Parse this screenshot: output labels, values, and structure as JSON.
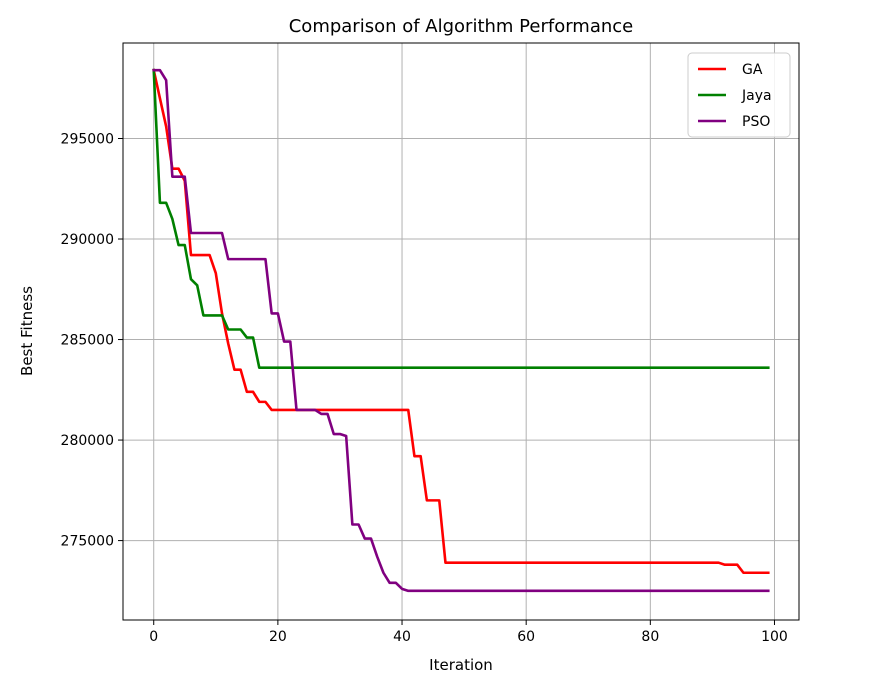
{
  "chart_data": {
    "type": "line",
    "title": "Comparison of Algorithm Performance",
    "xlabel": "Iteration",
    "ylabel": "Best Fitness",
    "xlim": [
      -4.95,
      103.95
    ],
    "ylim": [
      271050,
      299750
    ],
    "xticks": [
      0,
      20,
      40,
      60,
      80,
      100
    ],
    "yticks": [
      275000,
      280000,
      285000,
      290000,
      295000
    ],
    "grid": true,
    "legend_position": "top-right",
    "series": [
      {
        "name": "GA",
        "color": "#ff0000",
        "x": [
          0,
          1,
          2,
          3,
          4,
          5,
          6,
          7,
          8,
          9,
          10,
          11,
          12,
          13,
          14,
          15,
          16,
          17,
          18,
          19,
          20,
          21,
          22,
          23,
          24,
          25,
          26,
          27,
          28,
          29,
          30,
          31,
          32,
          33,
          34,
          35,
          36,
          37,
          38,
          39,
          40,
          41,
          42,
          43,
          44,
          45,
          46,
          47,
          48,
          49,
          50,
          51,
          52,
          53,
          54,
          55,
          56,
          57,
          58,
          59,
          60,
          61,
          62,
          63,
          64,
          65,
          66,
          67,
          68,
          69,
          70,
          71,
          72,
          73,
          74,
          75,
          76,
          77,
          78,
          79,
          80,
          81,
          82,
          83,
          84,
          85,
          86,
          87,
          88,
          89,
          90,
          91,
          92,
          93,
          94,
          95,
          96,
          97,
          98,
          99
        ],
        "y": [
          298400,
          297000,
          295600,
          293500,
          293500,
          292900,
          289200,
          289200,
          289200,
          289200,
          288300,
          286300,
          284800,
          283500,
          283500,
          282400,
          282400,
          281900,
          281900,
          281500,
          281500,
          281500,
          281500,
          281500,
          281500,
          281500,
          281500,
          281500,
          281500,
          281500,
          281500,
          281500,
          281500,
          281500,
          281500,
          281500,
          281500,
          281500,
          281500,
          281500,
          281500,
          281500,
          279200,
          279200,
          277000,
          277000,
          277000,
          273900,
          273900,
          273900,
          273900,
          273900,
          273900,
          273900,
          273900,
          273900,
          273900,
          273900,
          273900,
          273900,
          273900,
          273900,
          273900,
          273900,
          273900,
          273900,
          273900,
          273900,
          273900,
          273900,
          273900,
          273900,
          273900,
          273900,
          273900,
          273900,
          273900,
          273900,
          273900,
          273900,
          273900,
          273900,
          273900,
          273900,
          273900,
          273900,
          273900,
          273900,
          273900,
          273900,
          273900,
          273900,
          273800,
          273800,
          273800,
          273400,
          273400,
          273400,
          273400,
          273400
        ]
      },
      {
        "name": "Jaya",
        "color": "#008000",
        "x": [
          0,
          1,
          2,
          3,
          4,
          5,
          6,
          7,
          8,
          9,
          10,
          11,
          12,
          13,
          14,
          15,
          16,
          17,
          18,
          19,
          20,
          21,
          22,
          23,
          24,
          25,
          26,
          27,
          28,
          29,
          30,
          31,
          32,
          33,
          34,
          35,
          36,
          37,
          38,
          39,
          40,
          41,
          42,
          43,
          44,
          45,
          46,
          47,
          48,
          49,
          50,
          51,
          52,
          53,
          54,
          55,
          56,
          57,
          58,
          59,
          60,
          61,
          62,
          63,
          64,
          65,
          66,
          67,
          68,
          69,
          70,
          71,
          72,
          73,
          74,
          75,
          76,
          77,
          78,
          79,
          80,
          81,
          82,
          83,
          84,
          85,
          86,
          87,
          88,
          89,
          90,
          91,
          92,
          93,
          94,
          95,
          96,
          97,
          98,
          99
        ],
        "y": [
          298400,
          291800,
          291800,
          291000,
          289700,
          289700,
          288000,
          287700,
          286200,
          286200,
          286200,
          286200,
          285500,
          285500,
          285500,
          285100,
          285100,
          283600,
          283600,
          283600,
          283600,
          283600,
          283600,
          283600,
          283600,
          283600,
          283600,
          283600,
          283600,
          283600,
          283600,
          283600,
          283600,
          283600,
          283600,
          283600,
          283600,
          283600,
          283600,
          283600,
          283600,
          283600,
          283600,
          283600,
          283600,
          283600,
          283600,
          283600,
          283600,
          283600,
          283600,
          283600,
          283600,
          283600,
          283600,
          283600,
          283600,
          283600,
          283600,
          283600,
          283600,
          283600,
          283600,
          283600,
          283600,
          283600,
          283600,
          283600,
          283600,
          283600,
          283600,
          283600,
          283600,
          283600,
          283600,
          283600,
          283600,
          283600,
          283600,
          283600,
          283600,
          283600,
          283600,
          283600,
          283600,
          283600,
          283600,
          283600,
          283600,
          283600,
          283600,
          283600,
          283600,
          283600,
          283600,
          283600,
          283600,
          283600,
          283600,
          283600
        ]
      },
      {
        "name": "PSO",
        "color": "#800080",
        "x": [
          0,
          1,
          2,
          3,
          4,
          5,
          6,
          7,
          8,
          9,
          10,
          11,
          12,
          13,
          14,
          15,
          16,
          17,
          18,
          19,
          20,
          21,
          22,
          23,
          24,
          25,
          26,
          27,
          28,
          29,
          30,
          31,
          32,
          33,
          34,
          35,
          36,
          37,
          38,
          39,
          40,
          41,
          42,
          43,
          44,
          45,
          46,
          47,
          48,
          49,
          50,
          51,
          52,
          53,
          54,
          55,
          56,
          57,
          58,
          59,
          60,
          61,
          62,
          63,
          64,
          65,
          66,
          67,
          68,
          69,
          70,
          71,
          72,
          73,
          74,
          75,
          76,
          77,
          78,
          79,
          80,
          81,
          82,
          83,
          84,
          85,
          86,
          87,
          88,
          89,
          90,
          91,
          92,
          93,
          94,
          95,
          96,
          97,
          98,
          99
        ],
        "y": [
          298400,
          298400,
          297900,
          293100,
          293100,
          293100,
          290300,
          290300,
          290300,
          290300,
          290300,
          290300,
          289000,
          289000,
          289000,
          289000,
          289000,
          289000,
          289000,
          286300,
          286300,
          284900,
          284900,
          281500,
          281500,
          281500,
          281500,
          281300,
          281300,
          280300,
          280300,
          280200,
          275800,
          275800,
          275100,
          275100,
          274200,
          273400,
          272900,
          272900,
          272600,
          272500,
          272500,
          272500,
          272500,
          272500,
          272500,
          272500,
          272500,
          272500,
          272500,
          272500,
          272500,
          272500,
          272500,
          272500,
          272500,
          272500,
          272500,
          272500,
          272500,
          272500,
          272500,
          272500,
          272500,
          272500,
          272500,
          272500,
          272500,
          272500,
          272500,
          272500,
          272500,
          272500,
          272500,
          272500,
          272500,
          272500,
          272500,
          272500,
          272500,
          272500,
          272500,
          272500,
          272500,
          272500,
          272500,
          272500,
          272500,
          272500,
          272500,
          272500,
          272500,
          272500,
          272500,
          272500,
          272500,
          272500,
          272500,
          272500
        ]
      }
    ]
  }
}
